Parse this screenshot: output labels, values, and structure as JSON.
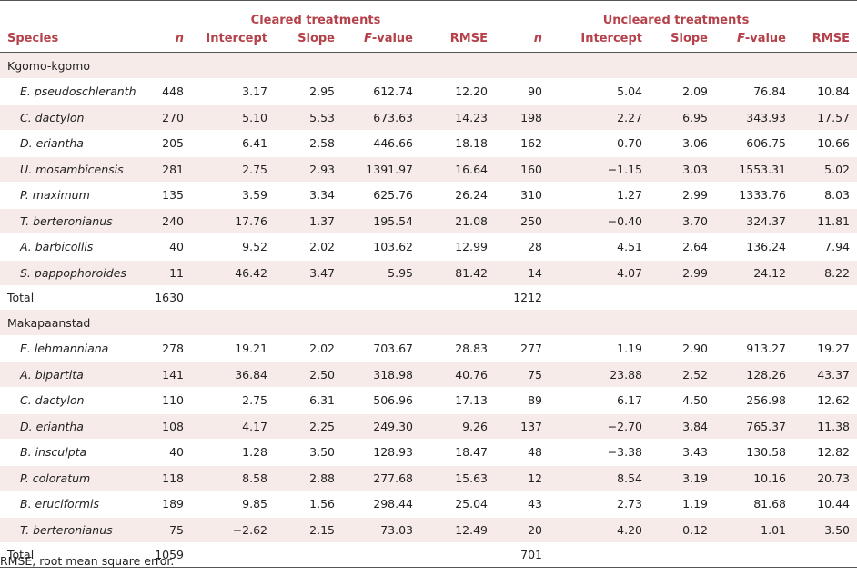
{
  "group_headers": {
    "cleared": "Cleared treatments",
    "uncleared": "Uncleared treatments"
  },
  "columns": {
    "species": "Species",
    "n": "n",
    "intercept": "Intercept",
    "slope": "Slope",
    "f_italic": "F",
    "f_rest": "-value",
    "rmse": "RMSE"
  },
  "sections": [
    {
      "name": "Kgomo-kgomo",
      "rows": [
        [
          "E. pseudoschlerantha",
          "448",
          "3.17",
          "2.95",
          "612.74",
          "12.20",
          "90",
          "5.04",
          "2.09",
          "76.84",
          "10.84"
        ],
        [
          "C. dactylon",
          "270",
          "5.10",
          "5.53",
          "673.63",
          "14.23",
          "198",
          "2.27",
          "6.95",
          "343.93",
          "17.57"
        ],
        [
          "D. eriantha",
          "205",
          "6.41",
          "2.58",
          "446.66",
          "18.18",
          "162",
          "0.70",
          "3.06",
          "606.75",
          "10.66"
        ],
        [
          "U. mosambicensis",
          "281",
          "2.75",
          "2.93",
          "1391.97",
          "16.64",
          "160",
          "−1.15",
          "3.03",
          "1553.31",
          "5.02"
        ],
        [
          "P. maximum",
          "135",
          "3.59",
          "3.34",
          "625.76",
          "26.24",
          "310",
          "1.27",
          "2.99",
          "1333.76",
          "8.03"
        ],
        [
          "T. berteronianus",
          "240",
          "17.76",
          "1.37",
          "195.54",
          "21.08",
          "250",
          "−0.40",
          "3.70",
          "324.37",
          "11.81"
        ],
        [
          "A. barbicollis",
          "40",
          "9.52",
          "2.02",
          "103.62",
          "12.99",
          "28",
          "4.51",
          "2.64",
          "136.24",
          "7.94"
        ],
        [
          "S. pappophoroides",
          "11",
          "46.42",
          "3.47",
          "5.95",
          "81.42",
          "14",
          "4.07",
          "2.99",
          "24.12",
          "8.22"
        ]
      ],
      "total": {
        "label": "Total",
        "cleared_n": "1630",
        "uncleared_n": "1212"
      }
    },
    {
      "name": "Makapaanstad",
      "rows": [
        [
          "E. lehmanniana",
          "278",
          "19.21",
          "2.02",
          "703.67",
          "28.83",
          "277",
          "1.19",
          "2.90",
          "913.27",
          "19.27"
        ],
        [
          "A. bipartita",
          "141",
          "36.84",
          "2.50",
          "318.98",
          "40.76",
          "75",
          "23.88",
          "2.52",
          "128.26",
          "43.37"
        ],
        [
          "C. dactylon",
          "110",
          "2.75",
          "6.31",
          "506.96",
          "17.13",
          "89",
          "6.17",
          "4.50",
          "256.98",
          "12.62"
        ],
        [
          "D. eriantha",
          "108",
          "4.17",
          "2.25",
          "249.30",
          "9.26",
          "137",
          "−2.70",
          "3.84",
          "765.37",
          "11.38"
        ],
        [
          "B. insculpta",
          "40",
          "1.28",
          "3.50",
          "128.93",
          "18.47",
          "48",
          "−3.38",
          "3.43",
          "130.58",
          "12.82"
        ],
        [
          "P. coloratum",
          "118",
          "8.58",
          "2.88",
          "277.68",
          "15.63",
          "12",
          "8.54",
          "3.19",
          "10.16",
          "20.73"
        ],
        [
          "B. eruciformis",
          "189",
          "9.85",
          "1.56",
          "298.44",
          "25.04",
          "43",
          "2.73",
          "1.19",
          "81.68",
          "10.44"
        ],
        [
          "T. berteronianus",
          "75",
          "−2.62",
          "2.15",
          "73.03",
          "12.49",
          "20",
          "4.20",
          "0.12",
          "1.01",
          "3.50"
        ]
      ],
      "total": {
        "label": "Total",
        "cleared_n": "1059",
        "uncleared_n": "701"
      }
    }
  ],
  "footnote": "RMSE, root mean square error."
}
